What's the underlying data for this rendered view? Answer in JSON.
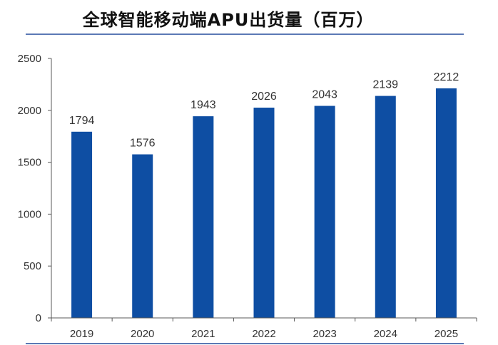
{
  "chart_data": {
    "type": "bar",
    "title": "全球智能移动端APU出货量（百万）",
    "categories": [
      "2019",
      "2020",
      "2021",
      "2022",
      "2023",
      "2024",
      "2025"
    ],
    "values": [
      1794,
      1576,
      1943,
      2026,
      2043,
      2139,
      2212
    ],
    "data_labels": [
      "1794",
      "1576",
      "1943",
      "2026",
      "2043",
      "2139",
      "2212"
    ],
    "y_ticks": [
      "0",
      "500",
      "1000",
      "1500",
      "2000",
      "2500"
    ],
    "ylim": [
      0,
      2500
    ],
    "xlabel": "",
    "ylabel": "",
    "grid": false,
    "bar_color": "#0e4ea3",
    "axis_color": "#595959"
  }
}
